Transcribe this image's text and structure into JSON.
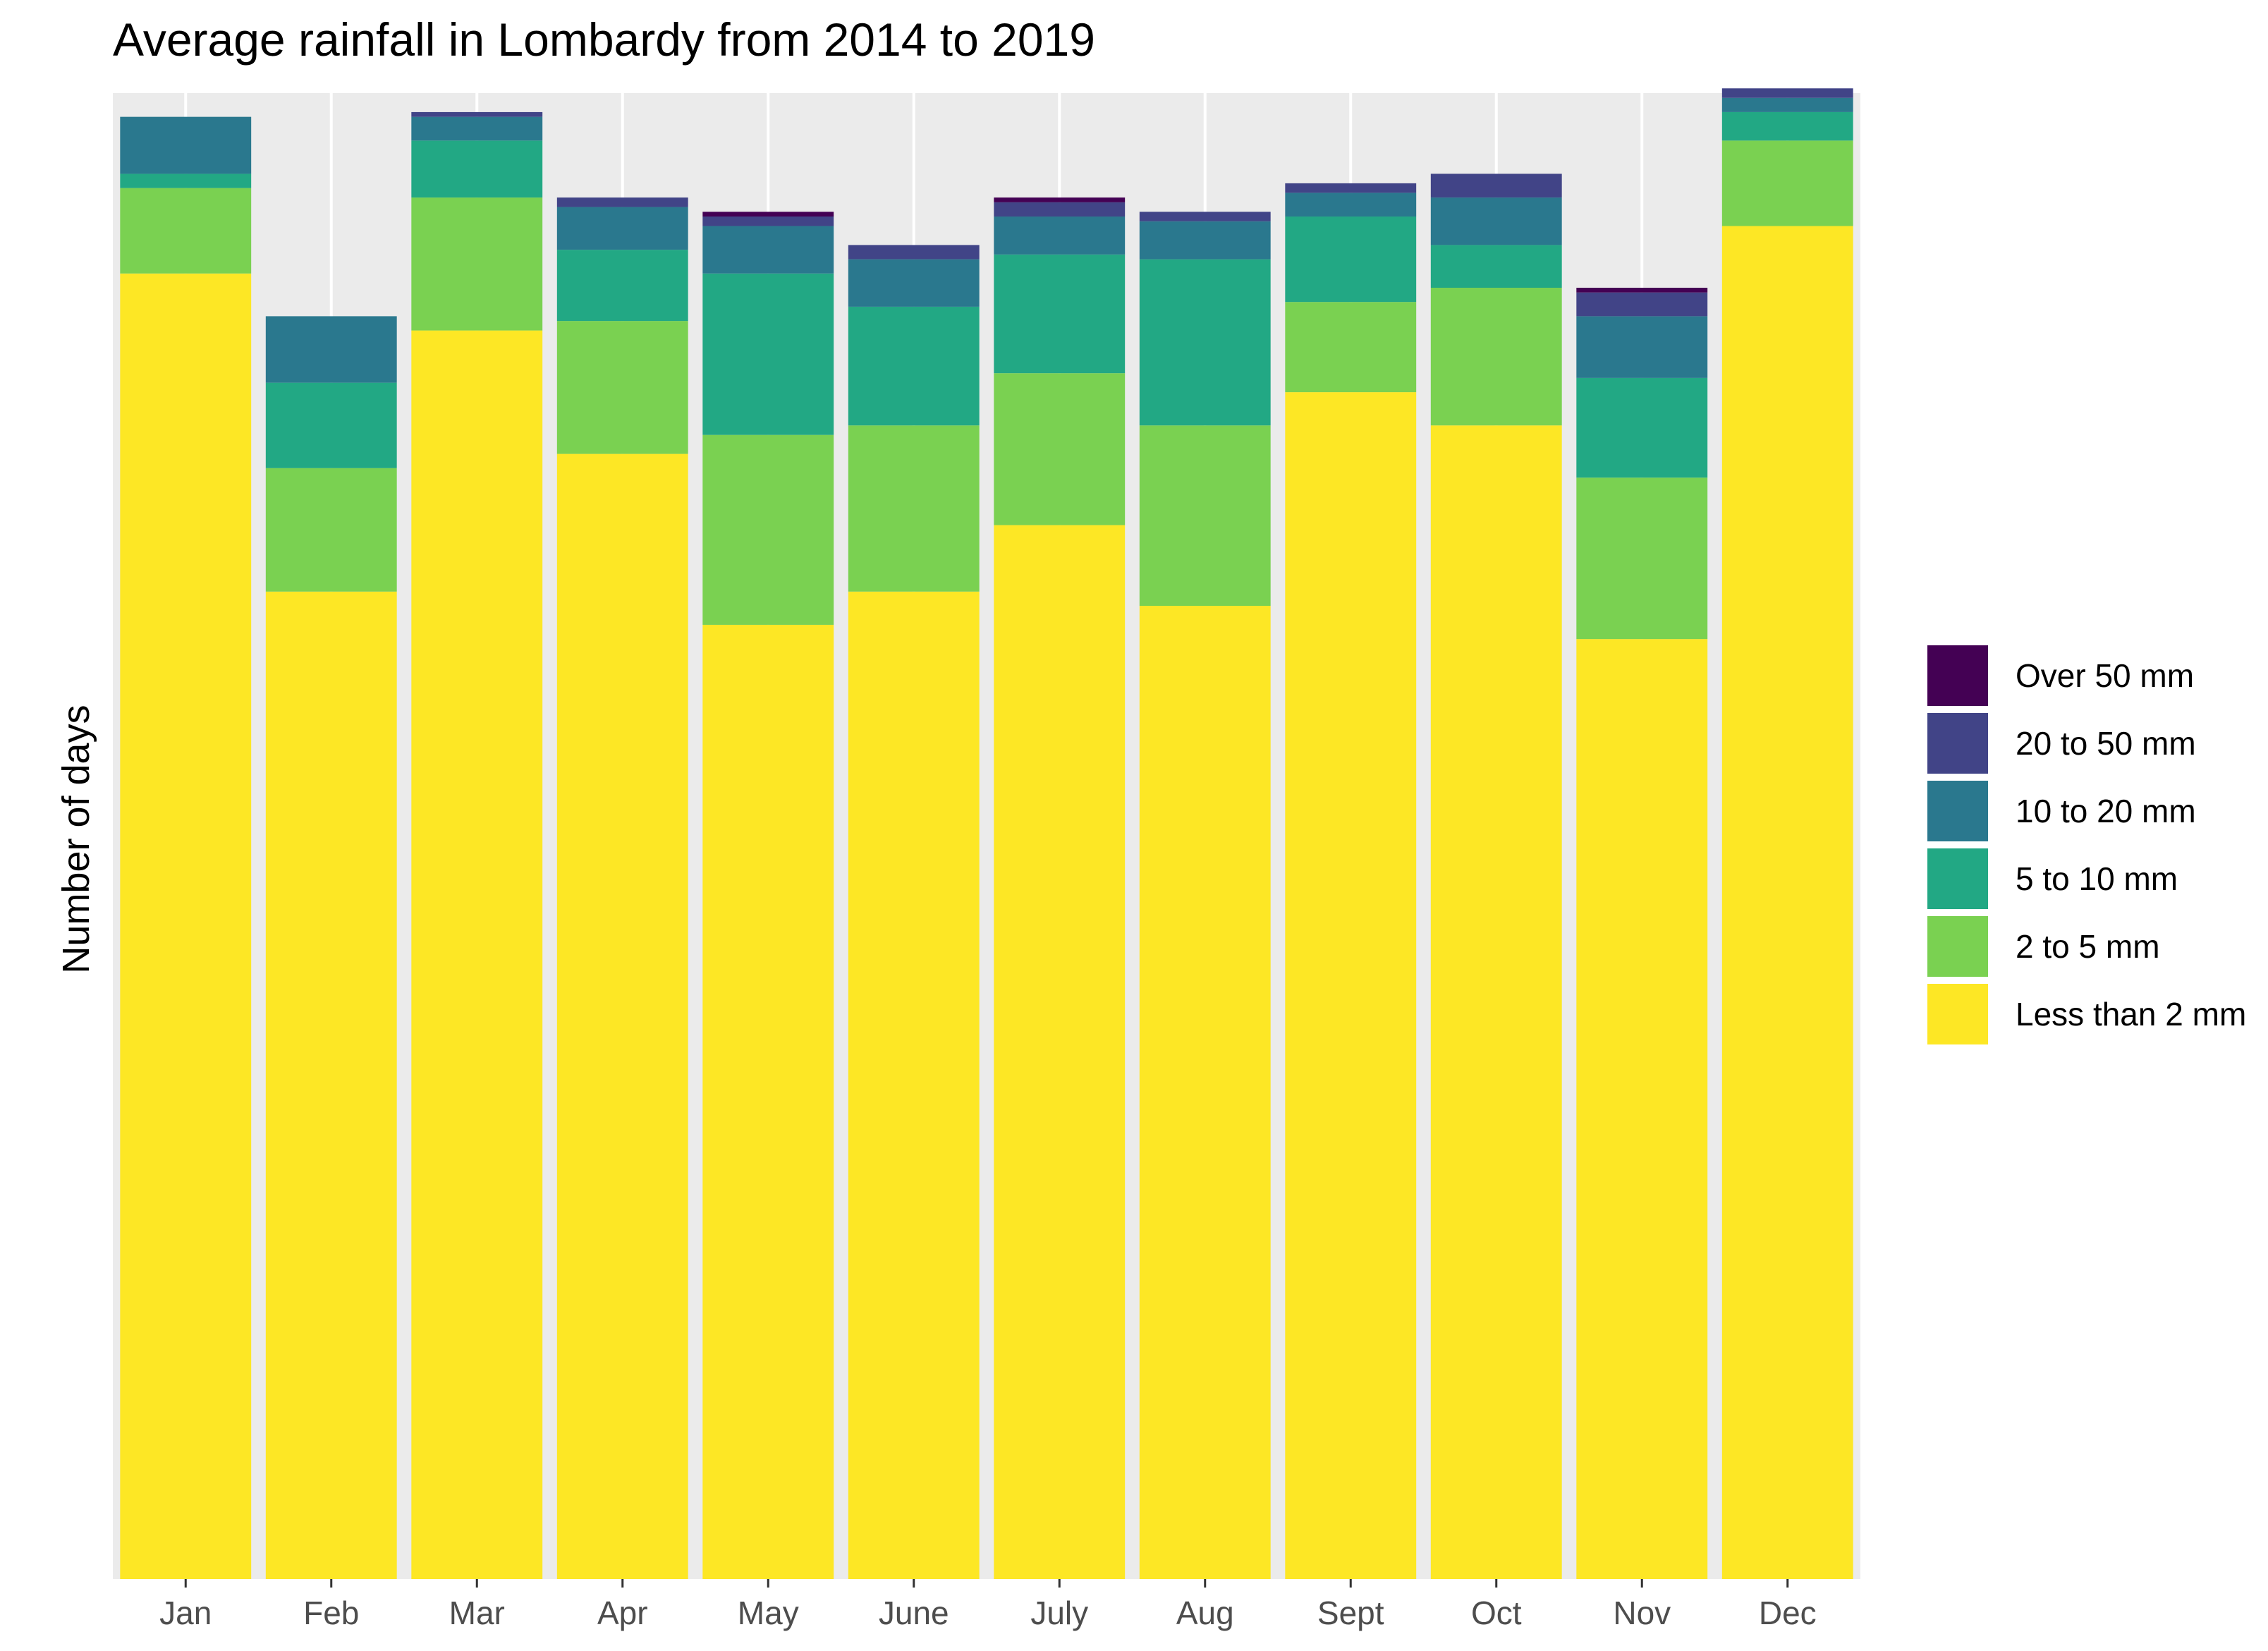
{
  "chart_data": {
    "type": "bar",
    "stacked": true,
    "title": "Average rainfall in Lombardy from 2014 to 2019",
    "xlabel": "",
    "ylabel": "Number of days",
    "ylim": [
      0,
      31.3
    ],
    "grid": true,
    "legend_position": "right",
    "categories": [
      "Jan",
      "Feb",
      "Mar",
      "Apr",
      "May",
      "June",
      "July",
      "Aug",
      "Sept",
      "Oct",
      "Nov",
      "Dec"
    ],
    "series": [
      {
        "name": "Less than 2 mm",
        "color": "#fde725",
        "values": [
          27.5,
          20.8,
          26.3,
          23.7,
          20.1,
          20.8,
          22.2,
          20.5,
          25.0,
          24.3,
          19.8,
          28.5
        ]
      },
      {
        "name": "2 to 5 mm",
        "color": "#7ad151",
        "values": [
          1.8,
          2.6,
          2.8,
          2.8,
          4.0,
          3.5,
          3.2,
          3.8,
          1.9,
          2.9,
          3.4,
          1.8
        ]
      },
      {
        "name": "5 to 10 mm",
        "color": "#22a884",
        "values": [
          0.3,
          1.8,
          1.2,
          1.5,
          3.4,
          2.5,
          2.5,
          3.5,
          1.8,
          0.9,
          2.1,
          0.6
        ]
      },
      {
        "name": "10 to 20 mm",
        "color": "#2a788e",
        "values": [
          1.2,
          1.4,
          0.5,
          0.9,
          1.0,
          1.0,
          0.8,
          0.8,
          0.5,
          1.0,
          1.3,
          0.3
        ]
      },
      {
        "name": "20 to 50 mm",
        "color": "#414487",
        "values": [
          0.0,
          0.0,
          0.1,
          0.2,
          0.2,
          0.3,
          0.3,
          0.2,
          0.2,
          0.5,
          0.5,
          0.2
        ]
      },
      {
        "name": "Over 50 mm",
        "color": "#440154",
        "values": [
          0.0,
          0.0,
          0.0,
          0.0,
          0.1,
          0.0,
          0.1,
          0.0,
          0.0,
          0.0,
          0.1,
          0.0
        ]
      }
    ]
  }
}
